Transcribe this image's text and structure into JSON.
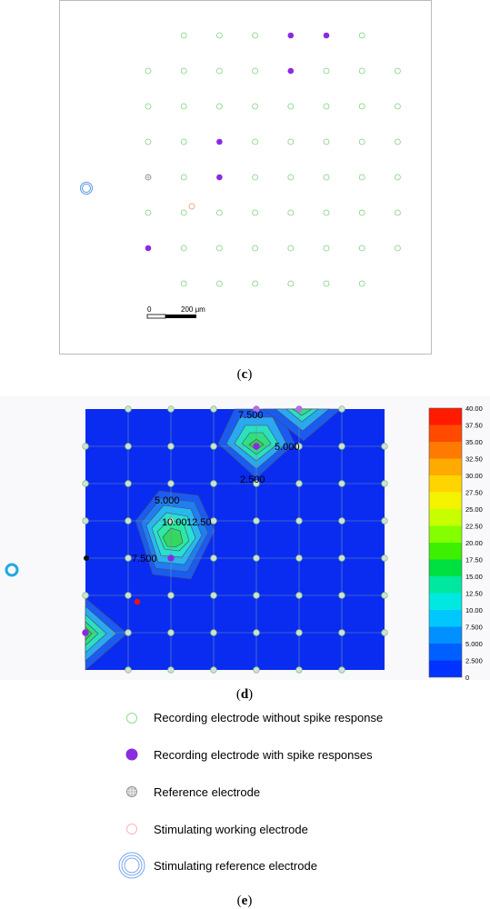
{
  "panel_c": {
    "caption": {
      "open": "(",
      "letter": "c",
      "close": ")"
    },
    "grid_rows": [
      {
        "cols": [
          1,
          2,
          3,
          4,
          5,
          6
        ],
        "active": [
          4,
          5
        ]
      },
      {
        "cols": [
          0,
          1,
          2,
          3,
          4,
          5,
          6,
          7
        ],
        "active": [
          4
        ]
      },
      {
        "cols": [
          0,
          1,
          2,
          3,
          4,
          5,
          6,
          7
        ],
        "active": []
      },
      {
        "cols": [
          0,
          1,
          2,
          3,
          4,
          5,
          6,
          7
        ],
        "active": [
          2
        ]
      },
      {
        "cols": [
          0,
          1,
          2,
          3,
          4,
          5,
          6,
          7
        ],
        "active": [
          2
        ],
        "reference": [
          0
        ]
      },
      {
        "cols": [
          0,
          1,
          2,
          3,
          4,
          5,
          6,
          7
        ],
        "active": []
      },
      {
        "cols": [
          0,
          1,
          2,
          3,
          4,
          5,
          6,
          7
        ],
        "active": [
          0
        ]
      },
      {
        "cols": [
          1,
          2,
          3,
          4,
          5,
          6
        ],
        "active": []
      }
    ],
    "scalebar": {
      "start_label": "0",
      "end_label": "200 μm"
    }
  },
  "panel_d": {
    "caption": {
      "open": "(",
      "letter": "d",
      "close": ")"
    },
    "colorbar_ticks": [
      "40.00",
      "37.50",
      "35.00",
      "32.50",
      "30.00",
      "27.50",
      "25.00",
      "22.50",
      "20.00",
      "17.50",
      "15.00",
      "12.50",
      "10.00",
      "7.500",
      "5.000",
      "2.500",
      "0"
    ],
    "colorbar_colors": [
      "#ff1a00",
      "#ff4a00",
      "#ff7a00",
      "#ffaa00",
      "#ffd400",
      "#f4f400",
      "#c8ff00",
      "#84ff00",
      "#3cf000",
      "#00e040",
      "#00e8a0",
      "#00e8e0",
      "#00c8ff",
      "#0090ff",
      "#0060ff",
      "#0033ff"
    ],
    "contour_labels": [
      "7.500",
      "5.000",
      "2.500",
      "5.000",
      "10.00",
      "12.50",
      "7.500"
    ]
  },
  "legend": {
    "caption": {
      "open": "(",
      "letter": "e",
      "close": ")"
    },
    "items": [
      {
        "icon": "green-ring-icon",
        "label": "Recording electrode without spike response"
      },
      {
        "icon": "purple-dot-icon",
        "label": "Recording electrode with spike responses"
      },
      {
        "icon": "reference-electrode-icon",
        "label": "Reference electrode"
      },
      {
        "icon": "pink-ring-icon",
        "label": "Stimulating working electrode"
      },
      {
        "icon": "blue-double-ring-icon",
        "label": "Stimulating reference electrode"
      }
    ]
  },
  "colors": {
    "recording": "#7fd07f",
    "active": "#8a2be2",
    "heat_base": "#0a2cf0",
    "stim_ref": "#3a8ff0",
    "stim_work": "#f0a890"
  }
}
